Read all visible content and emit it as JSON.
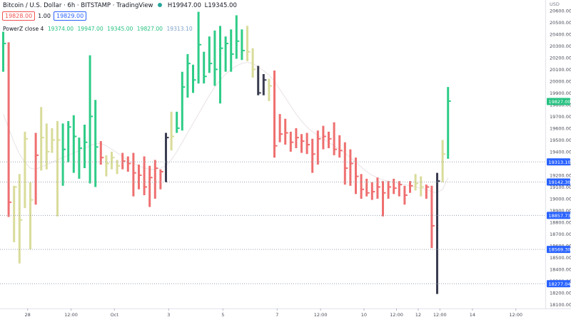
{
  "header": {
    "title": "Bitcoin / U.S. Dollar · 6h · BITSTAMP · TradingView",
    "high_label": "H19947.00",
    "low_label": "L19345.00"
  },
  "price_buttons": {
    "sell": "19828.00",
    "spread": "1.00",
    "buy": "19829.00"
  },
  "indicator": {
    "name": "PowerZ close 4",
    "values": [
      "19374.00",
      "19947.00",
      "19345.00",
      "19827.00"
    ],
    "extra": "19313.10"
  },
  "colors": {
    "up": "#2ecc87",
    "down": "#ef6f6f",
    "neutral": "#d9dc9a",
    "dark": "#3a3d50",
    "marker_blue": "#2962ff",
    "marker_green": "#26c281"
  },
  "chart_data": {
    "type": "ohlc",
    "ylim": [
      18085,
      20690
    ],
    "currency_label": "USD",
    "y_ticks": [
      "20600.00",
      "20500.00",
      "20400.00",
      "20300.00",
      "20200.00",
      "20100.00",
      "20000.00",
      "19900.00",
      "19800.00",
      "19700.00",
      "19600.00",
      "19500.00",
      "19400.00",
      "19300.00",
      "19200.00",
      "19100.00",
      "19000.00",
      "18900.00",
      "18800.00",
      "18700.00",
      "18600.00",
      "18500.00",
      "18400.00",
      "18300.00",
      "18200.00",
      "18100.00"
    ],
    "x_ticks": [
      {
        "label": "28",
        "bar": 4.5
      },
      {
        "label": "12:00",
        "bar": 12.5
      },
      {
        "label": "Oct",
        "bar": 20.5
      },
      {
        "label": "3",
        "bar": 30.5
      },
      {
        "label": "5",
        "bar": 40.5
      },
      {
        "label": "7",
        "bar": 50.5
      },
      {
        "label": "12:00",
        "bar": 58.5
      },
      {
        "label": "10",
        "bar": 66.5
      },
      {
        "label": "12:00",
        "bar": 72.5
      },
      {
        "label": "12",
        "bar": 76.5
      },
      {
        "label": "12:00",
        "bar": 80.5
      },
      {
        "label": "14",
        "bar": 86.5
      },
      {
        "label": "12:00",
        "bar": 94.5
      }
    ],
    "price_markers": [
      {
        "label": "19827.00",
        "price": 19827,
        "color": "green"
      },
      {
        "label": "19313.10",
        "price": 19313,
        "color": "blue"
      },
      {
        "label": "19142.30",
        "price": 19142,
        "color": "blue"
      },
      {
        "label": "18857.73",
        "price": 18858,
        "color": "blue"
      },
      {
        "label": "18569.30",
        "price": 18569,
        "color": "blue"
      },
      {
        "label": "18277.04",
        "price": 18277,
        "color": "blue"
      }
    ],
    "bars": [
      {
        "h": 20420,
        "l": 20080,
        "c": 20320,
        "k": "u"
      },
      {
        "h": 20330,
        "l": 18845,
        "c": 18970,
        "k": "d"
      },
      {
        "h": 19110,
        "l": 18630,
        "c": 19100,
        "k": "n"
      },
      {
        "h": 19210,
        "l": 18450,
        "c": 18820,
        "k": "n"
      },
      {
        "h": 19570,
        "l": 18920,
        "c": 19510,
        "k": "n"
      },
      {
        "h": 19140,
        "l": 18570,
        "c": 18990,
        "k": "n"
      },
      {
        "h": 19560,
        "l": 18950,
        "c": 19370,
        "k": "d"
      },
      {
        "h": 19780,
        "l": 19240,
        "c": 19520,
        "k": "n"
      },
      {
        "h": 19640,
        "l": 19250,
        "c": 19400,
        "k": "n"
      },
      {
        "h": 19600,
        "l": 19390,
        "c": 19500,
        "k": "n"
      },
      {
        "h": 19660,
        "l": 18850,
        "c": 19500,
        "k": "n"
      },
      {
        "h": 19640,
        "l": 19110,
        "c": 19420,
        "k": "u"
      },
      {
        "h": 19660,
        "l": 19310,
        "c": 19610,
        "k": "u"
      },
      {
        "h": 19710,
        "l": 19220,
        "c": 19530,
        "k": "u"
      },
      {
        "h": 19520,
        "l": 19170,
        "c": 19430,
        "k": "u"
      },
      {
        "h": 19630,
        "l": 19260,
        "c": 19480,
        "k": "u"
      },
      {
        "h": 20220,
        "l": 19130,
        "c": 19700,
        "k": "u"
      },
      {
        "h": 19840,
        "l": 19100,
        "c": 19440,
        "k": "u"
      },
      {
        "h": 19490,
        "l": 19290,
        "c": 19350,
        "k": "d"
      },
      {
        "h": 19370,
        "l": 19190,
        "c": 19300,
        "k": "n"
      },
      {
        "h": 19400,
        "l": 19250,
        "c": 19350,
        "k": "n"
      },
      {
        "h": 19330,
        "l": 19210,
        "c": 19280,
        "k": "n"
      },
      {
        "h": 19390,
        "l": 19250,
        "c": 19320,
        "k": "d"
      },
      {
        "h": 19360,
        "l": 19230,
        "c": 19300,
        "k": "d"
      },
      {
        "h": 19390,
        "l": 19020,
        "c": 19220,
        "k": "d"
      },
      {
        "h": 19290,
        "l": 19080,
        "c": 19200,
        "k": "d"
      },
      {
        "h": 19360,
        "l": 19030,
        "c": 19100,
        "k": "d"
      },
      {
        "h": 19280,
        "l": 18930,
        "c": 19180,
        "k": "d"
      },
      {
        "h": 19330,
        "l": 19000,
        "c": 19260,
        "k": "d"
      },
      {
        "h": 19250,
        "l": 19080,
        "c": 19230,
        "k": "d"
      },
      {
        "h": 19560,
        "l": 19140,
        "c": 19520,
        "k": "k"
      },
      {
        "h": 19740,
        "l": 19410,
        "c": 19530,
        "k": "n"
      },
      {
        "h": 19740,
        "l": 19560,
        "c": 19600,
        "k": "u"
      },
      {
        "h": 20080,
        "l": 19580,
        "c": 19950,
        "k": "u"
      },
      {
        "h": 20230,
        "l": 19860,
        "c": 20150,
        "k": "u"
      },
      {
        "h": 20140,
        "l": 19900,
        "c": 20010,
        "k": "u"
      },
      {
        "h": 20590,
        "l": 19980,
        "c": 20310,
        "k": "u"
      },
      {
        "h": 20250,
        "l": 19980,
        "c": 20040,
        "k": "u"
      },
      {
        "h": 20380,
        "l": 20070,
        "c": 20150,
        "k": "u"
      },
      {
        "h": 20430,
        "l": 19960,
        "c": 20100,
        "k": "u"
      },
      {
        "h": 20470,
        "l": 19810,
        "c": 20280,
        "k": "u"
      },
      {
        "h": 20380,
        "l": 20080,
        "c": 20320,
        "k": "u"
      },
      {
        "h": 20440,
        "l": 20080,
        "c": 20230,
        "k": "u"
      },
      {
        "h": 20560,
        "l": 20190,
        "c": 20340,
        "k": "u"
      },
      {
        "h": 20440,
        "l": 20180,
        "c": 20260,
        "k": "u"
      },
      {
        "h": 20470,
        "l": 20170,
        "c": 20250,
        "k": "n"
      },
      {
        "h": 20280,
        "l": 20030,
        "c": 20100,
        "k": "n"
      },
      {
        "h": 20130,
        "l": 19880,
        "c": 19900,
        "k": "k"
      },
      {
        "h": 20060,
        "l": 19880,
        "c": 20010,
        "k": "k"
      },
      {
        "h": 20020,
        "l": 19830,
        "c": 19960,
        "k": "n"
      },
      {
        "h": 20090,
        "l": 19350,
        "c": 19450,
        "k": "d"
      },
      {
        "h": 19720,
        "l": 19480,
        "c": 19550,
        "k": "d"
      },
      {
        "h": 19680,
        "l": 19460,
        "c": 19560,
        "k": "d"
      },
      {
        "h": 19570,
        "l": 19400,
        "c": 19480,
        "k": "d"
      },
      {
        "h": 19600,
        "l": 19430,
        "c": 19520,
        "k": "d"
      },
      {
        "h": 19550,
        "l": 19390,
        "c": 19490,
        "k": "d"
      },
      {
        "h": 19560,
        "l": 19380,
        "c": 19460,
        "k": "d"
      },
      {
        "h": 19510,
        "l": 19220,
        "c": 19380,
        "k": "d"
      },
      {
        "h": 19580,
        "l": 19290,
        "c": 19510,
        "k": "d"
      },
      {
        "h": 19620,
        "l": 19420,
        "c": 19530,
        "k": "d"
      },
      {
        "h": 19570,
        "l": 19430,
        "c": 19510,
        "k": "d"
      },
      {
        "h": 19650,
        "l": 19370,
        "c": 19420,
        "k": "d"
      },
      {
        "h": 19540,
        "l": 19350,
        "c": 19410,
        "k": "d"
      },
      {
        "h": 19480,
        "l": 19120,
        "c": 19260,
        "k": "d"
      },
      {
        "h": 19420,
        "l": 19110,
        "c": 19300,
        "k": "d"
      },
      {
        "h": 19350,
        "l": 19040,
        "c": 19190,
        "k": "d"
      },
      {
        "h": 19210,
        "l": 19000,
        "c": 19080,
        "k": "d"
      },
      {
        "h": 19170,
        "l": 19020,
        "c": 19050,
        "k": "d"
      },
      {
        "h": 19140,
        "l": 18990,
        "c": 19060,
        "k": "d"
      },
      {
        "h": 19180,
        "l": 19000,
        "c": 19100,
        "k": "d"
      },
      {
        "h": 19150,
        "l": 18850,
        "c": 19050,
        "k": "d"
      },
      {
        "h": 19150,
        "l": 19000,
        "c": 19100,
        "k": "d"
      },
      {
        "h": 19170,
        "l": 19040,
        "c": 19090,
        "k": "d"
      },
      {
        "h": 19150,
        "l": 19020,
        "c": 19120,
        "k": "d"
      },
      {
        "h": 19110,
        "l": 18950,
        "c": 19030,
        "k": "d"
      },
      {
        "h": 19150,
        "l": 19050,
        "c": 19110,
        "k": "d"
      },
      {
        "h": 19210,
        "l": 19070,
        "c": 19130,
        "k": "n"
      },
      {
        "h": 19190,
        "l": 19020,
        "c": 19100,
        "k": "n"
      },
      {
        "h": 19120,
        "l": 19000,
        "c": 19100,
        "k": "d"
      },
      {
        "h": 19110,
        "l": 18580,
        "c": 18770,
        "k": "d"
      },
      {
        "h": 19220,
        "l": 18190,
        "c": 19150,
        "k": "k"
      },
      {
        "h": 19500,
        "l": 19140,
        "c": 19380,
        "k": "n"
      },
      {
        "h": 19950,
        "l": 19340,
        "c": 19830,
        "k": "u"
      }
    ],
    "ma_line": [
      19720,
      19600,
      19480,
      19380,
      19310,
      19260,
      19250,
      19270,
      19290,
      19310,
      19330,
      19350,
      19370,
      19390,
      19410,
      19430,
      19450,
      19470,
      19470,
      19450,
      19420,
      19390,
      19360,
      19330,
      19300,
      19280,
      19260,
      19250,
      19250,
      19260,
      19280,
      19330,
      19400,
      19480,
      19560,
      19640,
      19720,
      19800,
      19880,
      19950,
      20010,
      20060,
      20100,
      20130,
      20150,
      20160,
      20150,
      20120,
      20090,
      20050,
      20000,
      19930,
      19860,
      19790,
      19720,
      19660,
      19610,
      19570,
      19540,
      19510,
      19480,
      19450,
      19420,
      19390,
      19350,
      19310,
      19270,
      19230,
      19200,
      19180,
      19160,
      19150,
      19140,
      19130,
      19120,
      19110,
      19100,
      19090,
      19080,
      19060,
      19050,
      19080,
      19180
    ]
  }
}
